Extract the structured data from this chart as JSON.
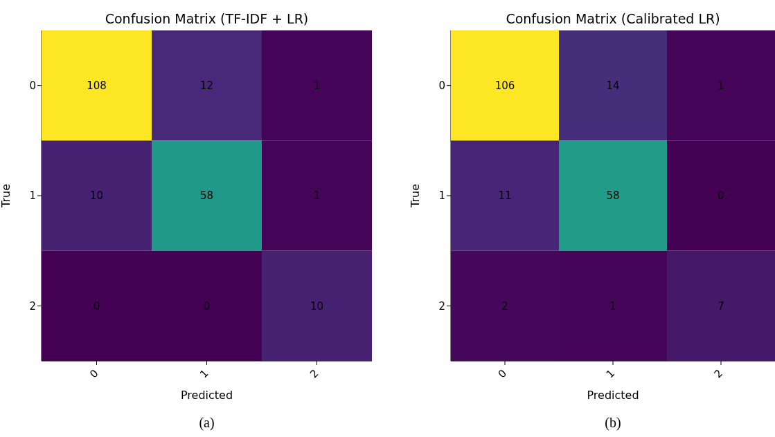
{
  "chart_data": [
    {
      "type": "heatmap",
      "title": "Confusion Matrix (TF-IDF + LR)",
      "xlabel": "Predicted",
      "ylabel": "True",
      "categories": [
        "0",
        "1",
        "2"
      ],
      "y_categories": [
        "0",
        "1",
        "2"
      ],
      "cells": [
        [
          108,
          12,
          1
        ],
        [
          10,
          58,
          1
        ],
        [
          0,
          0,
          10
        ]
      ],
      "data_labels": true,
      "annotations": [
        "(a)"
      ]
    },
    {
      "type": "heatmap",
      "title": "Confusion Matrix (Calibrated LR)",
      "xlabel": "Predicted",
      "ylabel": "True",
      "categories": [
        "0",
        "1",
        "2"
      ],
      "y_categories": [
        "0",
        "1",
        "2"
      ],
      "cells": [
        [
          106,
          14,
          1
        ],
        [
          11,
          58,
          0
        ],
        [
          2,
          1,
          7
        ]
      ],
      "data_labels": true,
      "annotations": [
        "(b)"
      ]
    }
  ]
}
